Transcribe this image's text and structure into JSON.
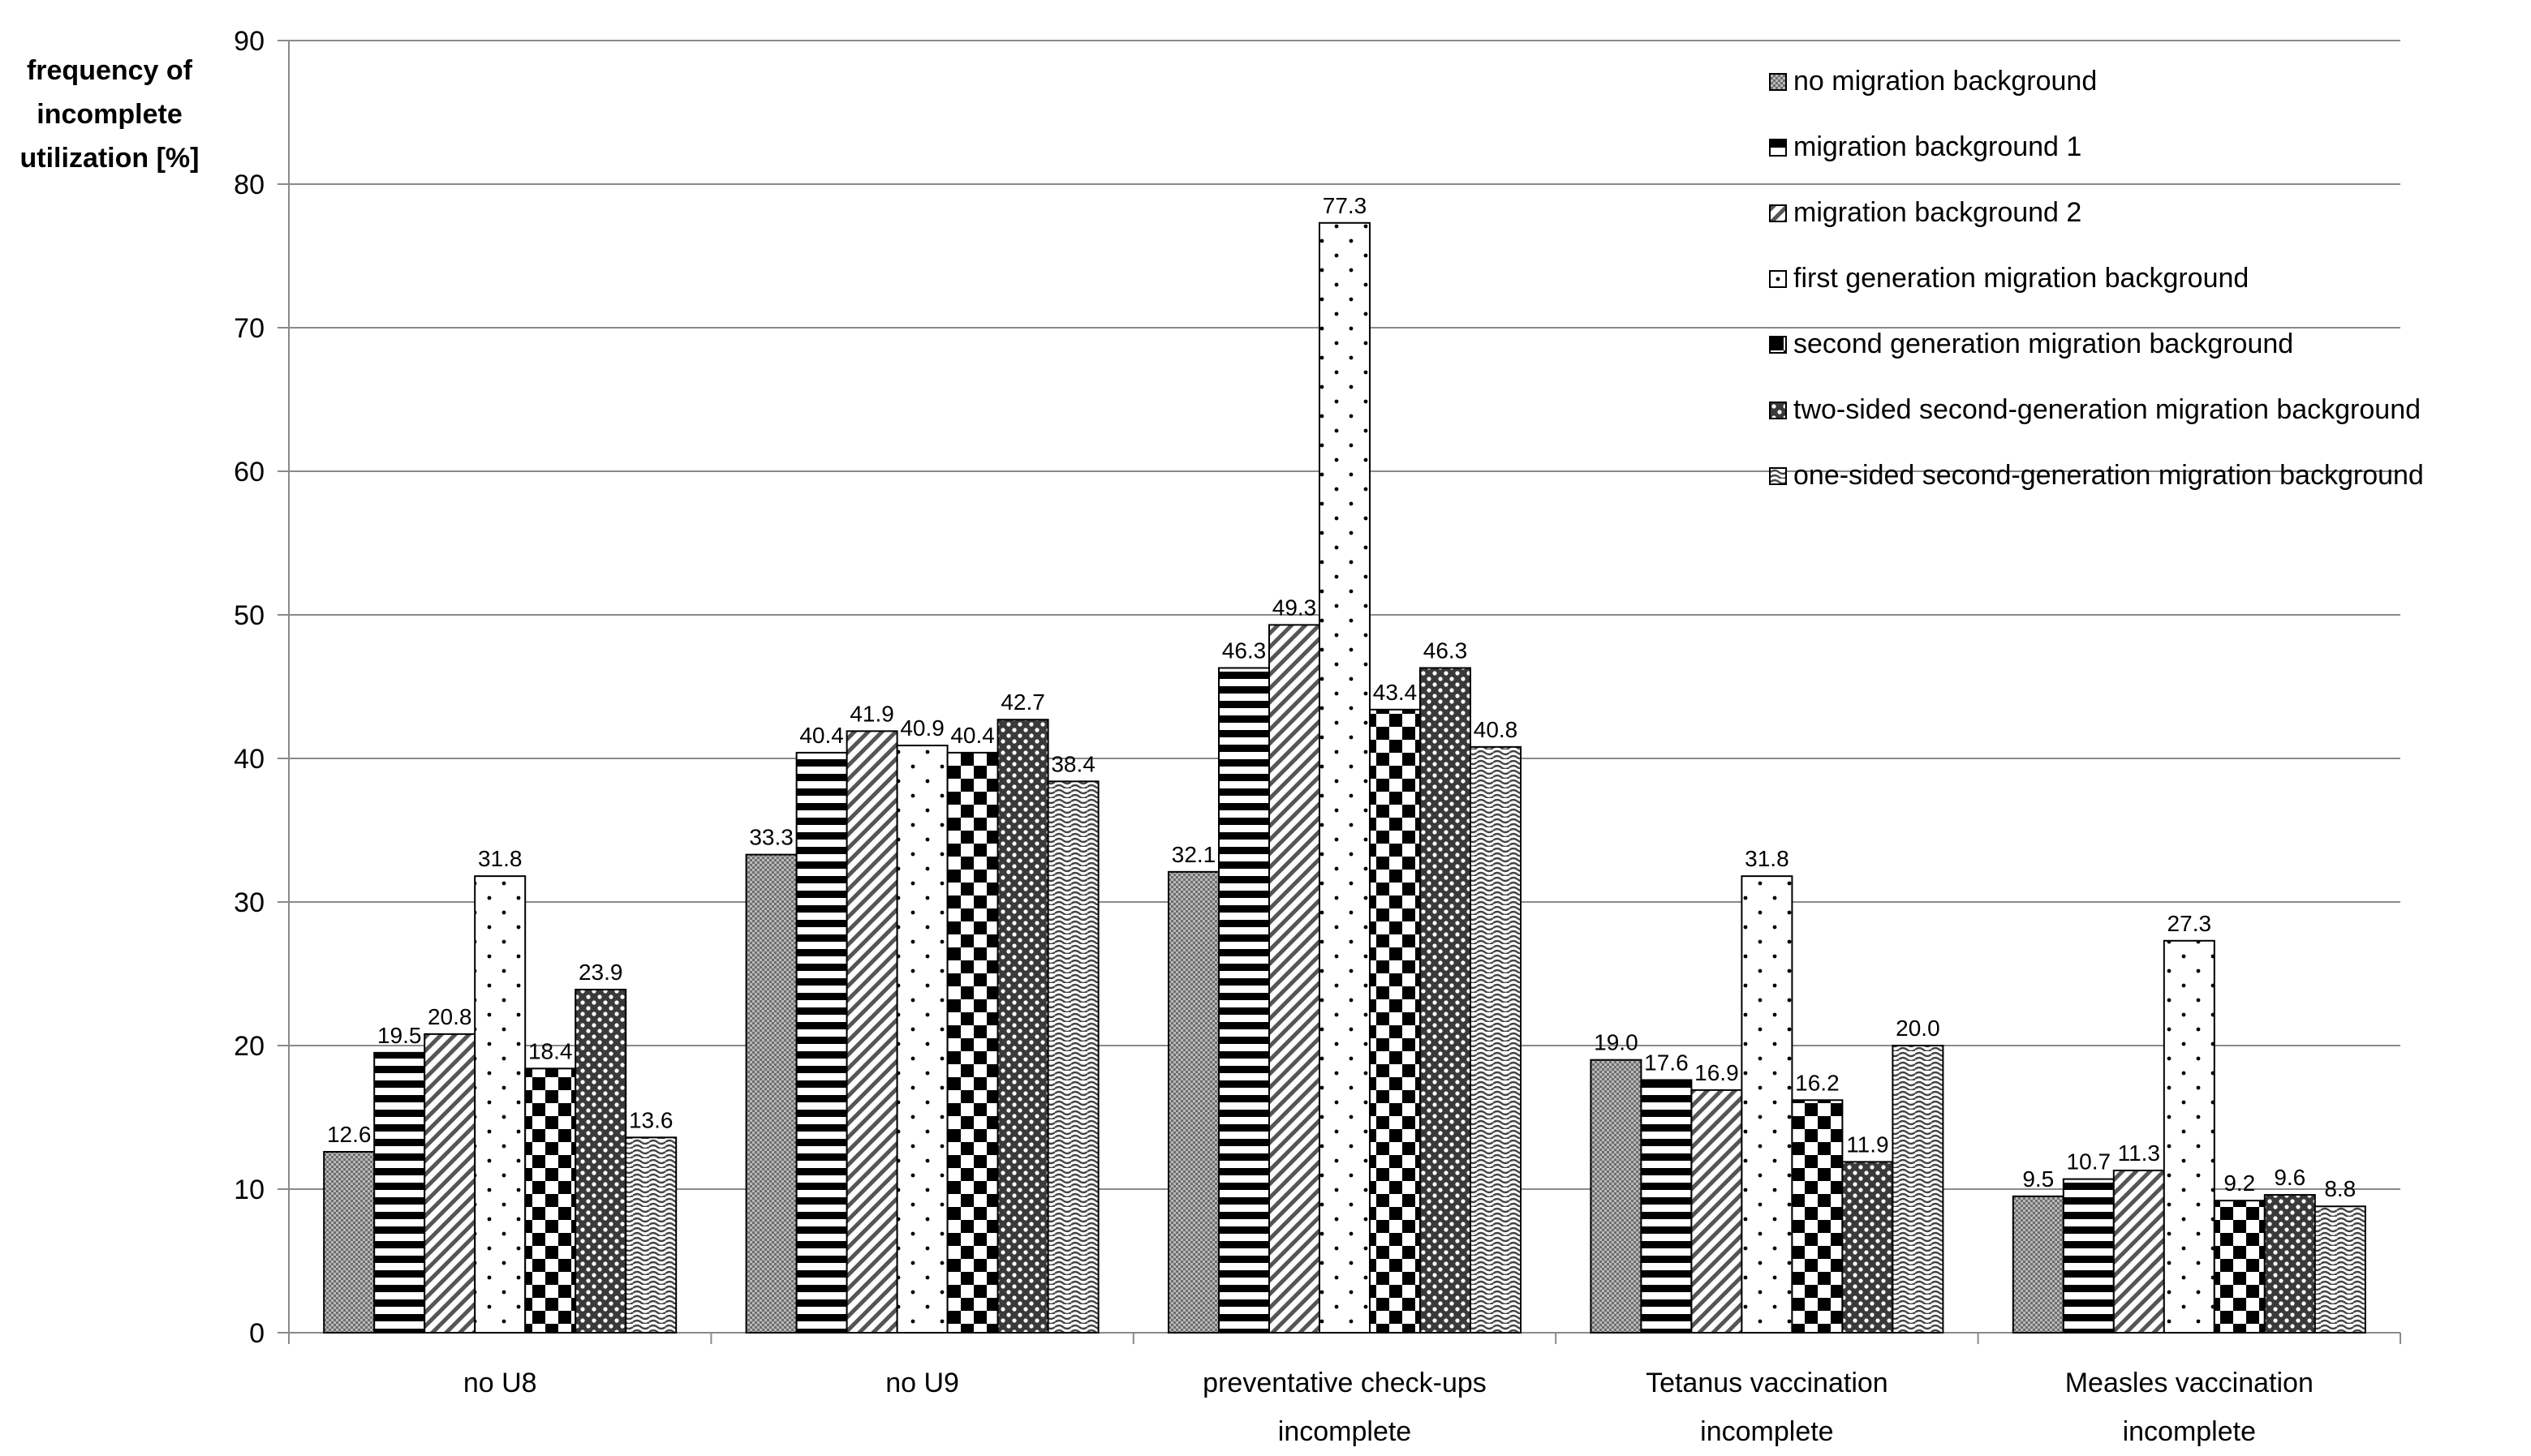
{
  "chart_data": {
    "type": "bar",
    "title": "",
    "xlabel": "",
    "ylabel_lines": [
      "frequency of",
      "incomplete",
      "utilization [%]"
    ],
    "ylim": [
      0,
      90
    ],
    "yticks": [
      0,
      10,
      20,
      30,
      40,
      50,
      60,
      70,
      80,
      90
    ],
    "grid": true,
    "legend_position": "top-right",
    "categories": [
      {
        "lines": [
          "no U8"
        ]
      },
      {
        "lines": [
          "no U9"
        ]
      },
      {
        "lines": [
          "preventative check-ups",
          "incomplete"
        ]
      },
      {
        "lines": [
          "Tetanus vaccination",
          "incomplete"
        ]
      },
      {
        "lines": [
          "Measles vaccination",
          "incomplete"
        ]
      }
    ],
    "series": [
      {
        "name": "no migration background",
        "pattern": "dense-gray",
        "values": [
          12.6,
          33.3,
          32.1,
          19.0,
          9.5
        ],
        "labels": [
          "12.6",
          "33.3",
          "32.1",
          "19.0",
          "9.5"
        ]
      },
      {
        "name": "migration background 1",
        "pattern": "horizontal-stripes",
        "values": [
          19.5,
          40.4,
          46.3,
          17.6,
          10.7
        ],
        "labels": [
          "19.5",
          "40.4",
          "46.3",
          "17.6",
          "10.7"
        ]
      },
      {
        "name": "migration background 2",
        "pattern": "diagonal-stripes",
        "values": [
          20.8,
          41.9,
          49.3,
          16.9,
          11.3
        ],
        "labels": [
          "20.8",
          "41.9",
          "49.3",
          "16.9",
          "11.3"
        ]
      },
      {
        "name": "first generation migration background",
        "pattern": "sparse-dots",
        "values": [
          31.8,
          40.9,
          77.3,
          31.8,
          27.3
        ],
        "labels": [
          "31.8",
          "40.9",
          "77.3",
          "31.8",
          "27.3"
        ]
      },
      {
        "name": "second generation migration background",
        "pattern": "checkerboard",
        "values": [
          18.4,
          40.4,
          43.4,
          16.2,
          9.2
        ],
        "labels": [
          "18.4",
          "40.4",
          "43.4",
          "16.2",
          "9.2"
        ]
      },
      {
        "name": "two-sided second-generation migration background",
        "pattern": "dark-dots",
        "values": [
          23.9,
          42.7,
          46.3,
          11.9,
          9.6
        ],
        "labels": [
          "23.9",
          "42.7",
          "46.3",
          "11.9",
          "9.6"
        ]
      },
      {
        "name": "one-sided second-generation migration background",
        "pattern": "waves",
        "values": [
          13.6,
          38.4,
          40.8,
          20.0,
          8.8
        ],
        "labels": [
          "13.6",
          "38.4",
          "40.8",
          "20.0",
          "8.8"
        ]
      }
    ]
  }
}
